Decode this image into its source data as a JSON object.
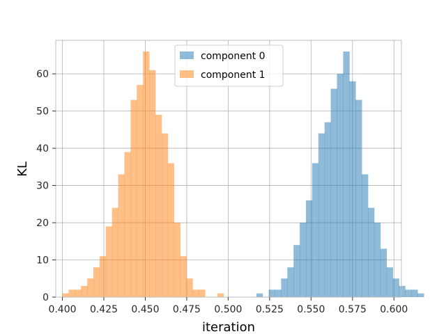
{
  "chart_data": {
    "type": "bar",
    "title": "",
    "xlabel": "iteration",
    "ylabel": "KL",
    "xlim": [
      0.396,
      0.6045
    ],
    "ylim": [
      0,
      69
    ],
    "xticks": [
      "0.400",
      "0.425",
      "0.450",
      "0.475",
      "0.500",
      "0.525",
      "0.550",
      "0.575",
      "0.600"
    ],
    "xtick_values": [
      0.4,
      0.425,
      0.45,
      0.475,
      0.5,
      0.525,
      0.55,
      0.575,
      0.6
    ],
    "yticks": [
      "0",
      "10",
      "20",
      "30",
      "40",
      "50",
      "60"
    ],
    "ytick_values": [
      0,
      10,
      20,
      30,
      40,
      50,
      60
    ],
    "grid": true,
    "legend_position": "top-center",
    "series": [
      {
        "name": "component 0",
        "color": "#1f77b4",
        "opacity": 0.5,
        "bin_start": 0.517,
        "bin_width": 0.00374,
        "counts": [
          1,
          0,
          2,
          2,
          5,
          8,
          14,
          20,
          26,
          36,
          44,
          47,
          56,
          60,
          66,
          58,
          53,
          33,
          24,
          20,
          13,
          8,
          5,
          3,
          2,
          2,
          1
        ]
      },
      {
        "name": "component 1",
        "color": "#ff7f0e",
        "opacity": 0.5,
        "bin_start": 0.4,
        "bin_width": 0.00374,
        "counts": [
          1,
          2,
          2,
          3,
          5,
          8,
          11,
          19,
          24,
          33,
          39,
          53,
          57,
          66,
          61,
          49,
          44,
          36,
          20,
          11,
          5,
          2,
          2,
          0,
          0,
          1
        ]
      }
    ]
  }
}
